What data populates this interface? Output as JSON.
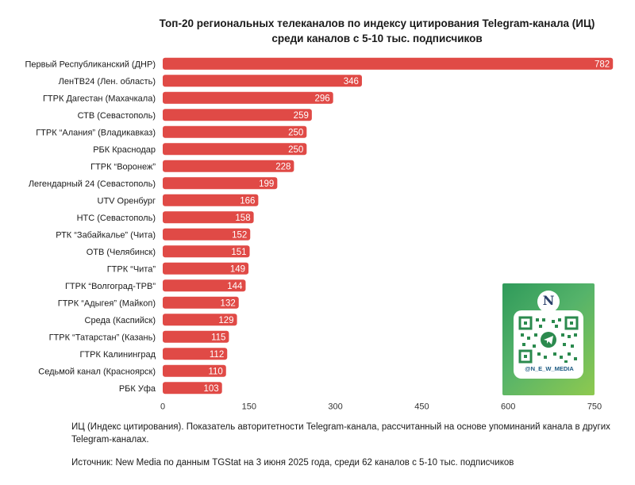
{
  "title_lines": [
    "Топ-20 региональных телеканалов по индексу цитирования Telegram-канала (ИЦ)",
    "среди каналов с 5-10 тыс. подписчиков"
  ],
  "note": "ИЦ (Индекс цитирования). Показатель авторитетности Telegram-канала, рассчитанный на основе упоминаний канала в других Telegram-каналах.",
  "source": "Источник: New Media по данным TGStat на 3 июня 2025 года, среди 62 каналов с 5-10 тыс. подписчиков",
  "qr": {
    "handle": "@N_E_W_MEDIA",
    "logo_letter": "N"
  },
  "colors": {
    "bar": "#e04a46",
    "bar_label": "#ffffff",
    "tick": "#333333"
  },
  "chart_data": {
    "type": "bar",
    "orientation": "horizontal",
    "title": "Топ-20 региональных телеканалов по индексу цитирования Telegram-канала (ИЦ) среди каналов с 5-10 тыс. подписчиков",
    "xlabel": "",
    "ylabel": "",
    "xlim": [
      0,
      750
    ],
    "xticks": [
      0,
      150,
      300,
      450,
      600,
      750
    ],
    "grid": false,
    "categories": [
      "Первый Республиканский (ДНР)",
      "ЛенТВ24 (Лен. область)",
      "ГТРК Дагестан (Махачкала)",
      "СТВ (Севастополь)",
      "ГТРК “Алания” (Владикавказ)",
      "РБК Краснодар",
      "ГТРК “Воронеж”",
      "Легендарный 24 (Севастополь)",
      "UTV Оренбург",
      "НТС (Севастополь)",
      "РТК “Забайкалье” (Чита)",
      "ОТВ (Челябинск)",
      "ГТРК “Чита”",
      "ГТРК “Волгоград-ТРВ”",
      "ГТРК “Адыгея” (Майкоп)",
      "Среда (Каспийск)",
      "ГТРК “Татарстан” (Казань)",
      "ГТРК Калининград",
      "Седьмой канал (Красноярск)",
      "РБК Уфа"
    ],
    "values": [
      782,
      346,
      296,
      259,
      250,
      250,
      228,
      199,
      166,
      158,
      152,
      151,
      149,
      144,
      132,
      129,
      115,
      112,
      110,
      103
    ]
  }
}
